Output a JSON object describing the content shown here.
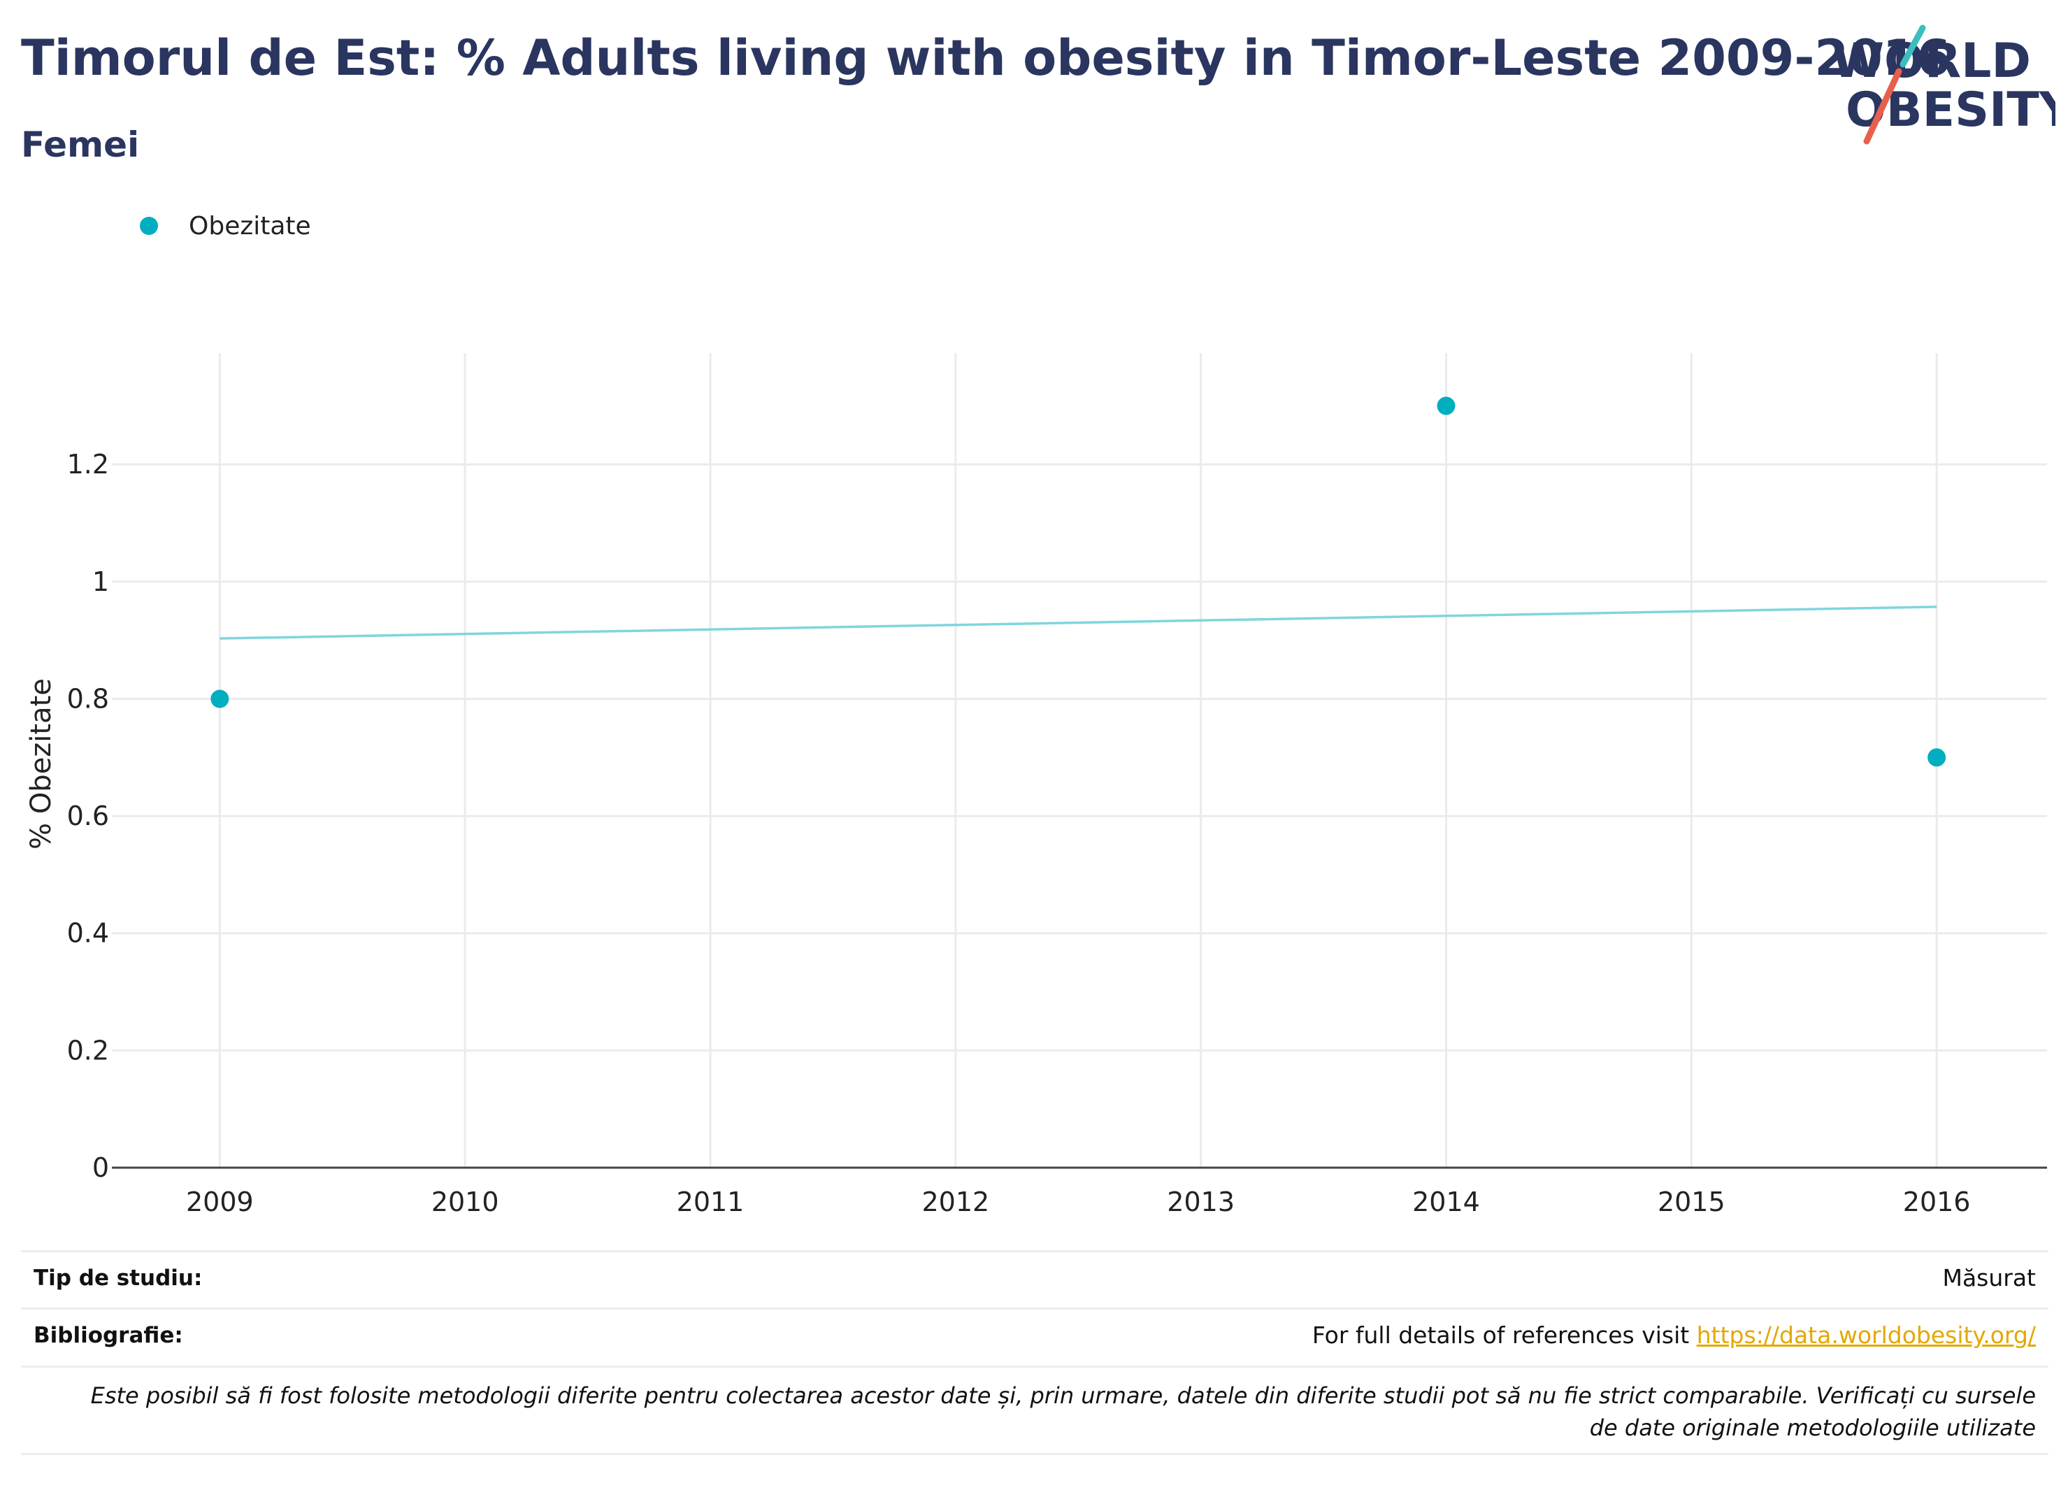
{
  "title": "Timorul de Est: % Adults living with obesity in Timor-Leste 2009-2016",
  "subtitle": "Femei",
  "logo": {
    "line1": "WORLD",
    "line2": "OBESITY"
  },
  "legend": {
    "label": "Obezitate",
    "color": "#00aec0"
  },
  "colors": {
    "title": "#2a3560",
    "marker": "#00aec0",
    "trend": "#7fd6dc",
    "link": "#e2a800",
    "logo_teal": "#3cbdc0",
    "logo_red": "#e8604c"
  },
  "chart_data": {
    "type": "scatter",
    "title": "Timorul de Est: % Adults living with obesity in Timor-Leste 2009-2016",
    "subtitle": "Femei",
    "ylabel": "% Obezitate",
    "xlabel": "",
    "x_ticks": [
      2009,
      2010,
      2011,
      2012,
      2013,
      2014,
      2015,
      2016
    ],
    "y_ticks": [
      0,
      0.2,
      0.4,
      0.6,
      0.8,
      1,
      1.2
    ],
    "y_tick_labels": [
      "0",
      "0.2",
      "0.4",
      "0.6",
      "0.8",
      "1",
      "1.2"
    ],
    "xlim": [
      2008.56,
      2016.45
    ],
    "ylim": [
      0,
      1.39
    ],
    "grid": true,
    "legend_position": "top-left",
    "series": [
      {
        "name": "Obezitate",
        "x": [
          2009,
          2014,
          2016
        ],
        "y": [
          0.8,
          1.3,
          0.7
        ]
      }
    ],
    "trendline": {
      "x": [
        2009,
        2016
      ],
      "y": [
        0.903,
        0.957
      ]
    }
  },
  "footer": {
    "study_type_label": "Tip de studiu:",
    "study_type_value": "Măsurat",
    "bibliography_label": "Bibliografie:",
    "bibliography_text": "For full details of references visit ",
    "bibliography_link": "https://data.worldobesity.org/",
    "note": "Este posibil să fi fost folosite metodologii diferite pentru colectarea acestor date și, prin urmare, datele din diferite studii pot să nu fie strict comparabile. Verificați cu sursele de date originale metodologiile utilizate"
  }
}
